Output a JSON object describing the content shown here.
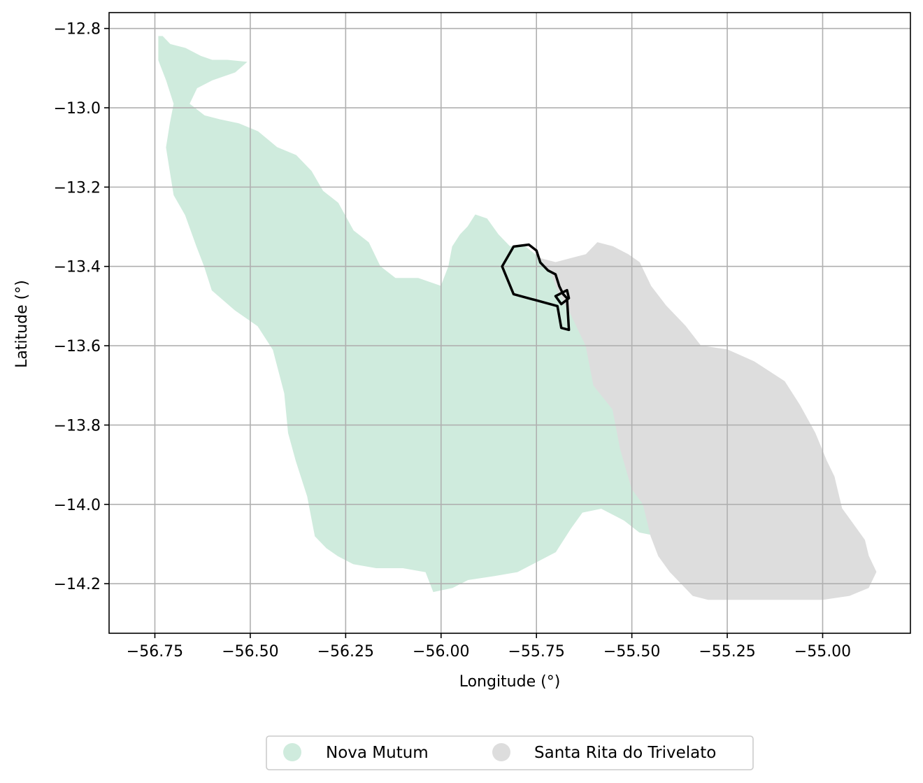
{
  "chart_data": {
    "type": "map",
    "xlabel": "Longitude (°)",
    "ylabel": "Latitude (°)",
    "xlim": [
      -56.87,
      -54.77
    ],
    "ylim": [
      -14.325,
      -12.76
    ],
    "grid": true,
    "xticks": [
      -56.75,
      -56.5,
      -56.25,
      -56.0,
      -55.75,
      -55.5,
      -55.25,
      -55.0
    ],
    "xtick_labels": [
      "−56.75",
      "−56.50",
      "−56.25",
      "−56.00",
      "−55.75",
      "−55.50",
      "−55.25",
      "−55.00"
    ],
    "yticks": [
      -12.8,
      -13.0,
      -13.2,
      -13.4,
      -13.6,
      -13.8,
      -14.0,
      -14.2
    ],
    "ytick_labels": [
      "−12.8",
      "−13.0",
      "−13.2",
      "−13.4",
      "−13.6",
      "−13.8",
      "−14.0",
      "−14.2"
    ],
    "legend_position": "bottom-center",
    "regions": [
      {
        "name": "Nova Mutum",
        "color": "#cfebdd",
        "polygon": [
          [
            -56.74,
            -12.82
          ],
          [
            -56.73,
            -12.82
          ],
          [
            -56.71,
            -12.84
          ],
          [
            -56.67,
            -12.85
          ],
          [
            -56.63,
            -12.87
          ],
          [
            -56.6,
            -12.88
          ],
          [
            -56.56,
            -12.88
          ],
          [
            -56.51,
            -12.885
          ],
          [
            -56.54,
            -12.91
          ],
          [
            -56.6,
            -12.93
          ],
          [
            -56.64,
            -12.95
          ],
          [
            -56.66,
            -12.99
          ],
          [
            -56.62,
            -13.02
          ],
          [
            -56.58,
            -13.03
          ],
          [
            -56.53,
            -13.04
          ],
          [
            -56.48,
            -13.06
          ],
          [
            -56.43,
            -13.1
          ],
          [
            -56.38,
            -13.12
          ],
          [
            -56.34,
            -13.16
          ],
          [
            -56.31,
            -13.21
          ],
          [
            -56.27,
            -13.24
          ],
          [
            -56.23,
            -13.31
          ],
          [
            -56.19,
            -13.34
          ],
          [
            -56.16,
            -13.4
          ],
          [
            -56.12,
            -13.43
          ],
          [
            -56.06,
            -13.43
          ],
          [
            -56.0,
            -13.45
          ],
          [
            -55.98,
            -13.4
          ],
          [
            -55.97,
            -13.35
          ],
          [
            -55.95,
            -13.32
          ],
          [
            -55.93,
            -13.3
          ],
          [
            -55.91,
            -13.27
          ],
          [
            -55.88,
            -13.28
          ],
          [
            -55.85,
            -13.32
          ],
          [
            -55.82,
            -13.35
          ],
          [
            -55.78,
            -13.35
          ],
          [
            -55.74,
            -13.38
          ],
          [
            -55.71,
            -13.42
          ],
          [
            -55.69,
            -13.47
          ],
          [
            -55.66,
            -13.52
          ],
          [
            -55.62,
            -13.6
          ],
          [
            -55.6,
            -13.7
          ],
          [
            -55.55,
            -13.76
          ],
          [
            -55.53,
            -13.86
          ],
          [
            -55.5,
            -13.96
          ],
          [
            -55.47,
            -14.0
          ],
          [
            -55.45,
            -14.06
          ],
          [
            -55.43,
            -14.08
          ],
          [
            -55.48,
            -14.07
          ],
          [
            -55.52,
            -14.04
          ],
          [
            -55.58,
            -14.01
          ],
          [
            -55.63,
            -14.02
          ],
          [
            -55.66,
            -14.06
          ],
          [
            -55.7,
            -14.12
          ],
          [
            -55.76,
            -14.15
          ],
          [
            -55.8,
            -14.17
          ],
          [
            -55.86,
            -14.18
          ],
          [
            -55.93,
            -14.19
          ],
          [
            -55.97,
            -14.21
          ],
          [
            -56.02,
            -14.22
          ],
          [
            -56.04,
            -14.17
          ],
          [
            -56.1,
            -14.16
          ],
          [
            -56.17,
            -14.16
          ],
          [
            -56.23,
            -14.15
          ],
          [
            -56.27,
            -14.13
          ],
          [
            -56.3,
            -14.11
          ],
          [
            -56.33,
            -14.08
          ],
          [
            -56.35,
            -13.98
          ],
          [
            -56.38,
            -13.89
          ],
          [
            -56.4,
            -13.82
          ],
          [
            -56.41,
            -13.72
          ],
          [
            -56.44,
            -13.61
          ],
          [
            -56.48,
            -13.55
          ],
          [
            -56.54,
            -13.51
          ],
          [
            -56.6,
            -13.46
          ],
          [
            -56.62,
            -13.4
          ],
          [
            -56.64,
            -13.35
          ],
          [
            -56.67,
            -13.27
          ],
          [
            -56.7,
            -13.22
          ],
          [
            -56.71,
            -13.16
          ],
          [
            -56.72,
            -13.1
          ],
          [
            -56.71,
            -13.04
          ],
          [
            -56.7,
            -12.99
          ],
          [
            -56.72,
            -12.93
          ],
          [
            -56.74,
            -12.88
          ],
          [
            -56.74,
            -12.85
          ]
        ]
      },
      {
        "name": "Santa Rita do Trivelato",
        "color": "#dddddd",
        "polygon": [
          [
            -55.74,
            -13.38
          ],
          [
            -55.7,
            -13.39
          ],
          [
            -55.66,
            -13.38
          ],
          [
            -55.62,
            -13.37
          ],
          [
            -55.59,
            -13.34
          ],
          [
            -55.55,
            -13.35
          ],
          [
            -55.51,
            -13.37
          ],
          [
            -55.48,
            -13.39
          ],
          [
            -55.45,
            -13.45
          ],
          [
            -55.41,
            -13.5
          ],
          [
            -55.36,
            -13.55
          ],
          [
            -55.32,
            -13.6
          ],
          [
            -55.25,
            -13.61
          ],
          [
            -55.18,
            -13.64
          ],
          [
            -55.1,
            -13.69
          ],
          [
            -55.06,
            -13.75
          ],
          [
            -55.02,
            -13.82
          ],
          [
            -54.99,
            -13.89
          ],
          [
            -54.97,
            -13.93
          ],
          [
            -54.95,
            -14.01
          ],
          [
            -54.92,
            -14.05
          ],
          [
            -54.89,
            -14.09
          ],
          [
            -54.88,
            -14.13
          ],
          [
            -54.86,
            -14.17
          ],
          [
            -54.88,
            -14.21
          ],
          [
            -54.93,
            -14.23
          ],
          [
            -55.0,
            -14.24
          ],
          [
            -55.05,
            -14.24
          ],
          [
            -55.1,
            -14.24
          ],
          [
            -55.16,
            -14.24
          ],
          [
            -55.22,
            -14.24
          ],
          [
            -55.3,
            -14.24
          ],
          [
            -55.34,
            -14.23
          ],
          [
            -55.37,
            -14.2
          ],
          [
            -55.4,
            -14.17
          ],
          [
            -55.43,
            -14.13
          ],
          [
            -55.45,
            -14.08
          ],
          [
            -55.47,
            -14.0
          ],
          [
            -55.5,
            -13.96
          ],
          [
            -55.53,
            -13.86
          ],
          [
            -55.55,
            -13.76
          ],
          [
            -55.6,
            -13.7
          ],
          [
            -55.62,
            -13.6
          ],
          [
            -55.66,
            -13.52
          ],
          [
            -55.69,
            -13.47
          ],
          [
            -55.71,
            -13.42
          ]
        ]
      }
    ],
    "outlines": [
      {
        "color": "#000000",
        "polygon": [
          [
            -55.81,
            -13.35
          ],
          [
            -55.77,
            -13.345
          ],
          [
            -55.75,
            -13.36
          ],
          [
            -55.74,
            -13.39
          ],
          [
            -55.72,
            -13.41
          ],
          [
            -55.7,
            -13.42
          ],
          [
            -55.69,
            -13.45
          ],
          [
            -55.68,
            -13.47
          ],
          [
            -55.67,
            -13.48
          ],
          [
            -55.665,
            -13.56
          ],
          [
            -55.685,
            -13.555
          ],
          [
            -55.695,
            -13.5
          ],
          [
            -55.81,
            -13.47
          ],
          [
            -55.84,
            -13.4
          ]
        ]
      },
      {
        "color": "#000000",
        "polygon": [
          [
            -55.69,
            -13.47
          ],
          [
            -55.67,
            -13.46
          ],
          [
            -55.665,
            -13.48
          ],
          [
            -55.685,
            -13.495
          ],
          [
            -55.7,
            -13.475
          ]
        ]
      }
    ]
  },
  "legend": {
    "items": [
      {
        "label": "Nova Mutum",
        "color": "#cfebdd"
      },
      {
        "label": "Santa Rita do Trivelato",
        "color": "#dddddd"
      }
    ]
  }
}
